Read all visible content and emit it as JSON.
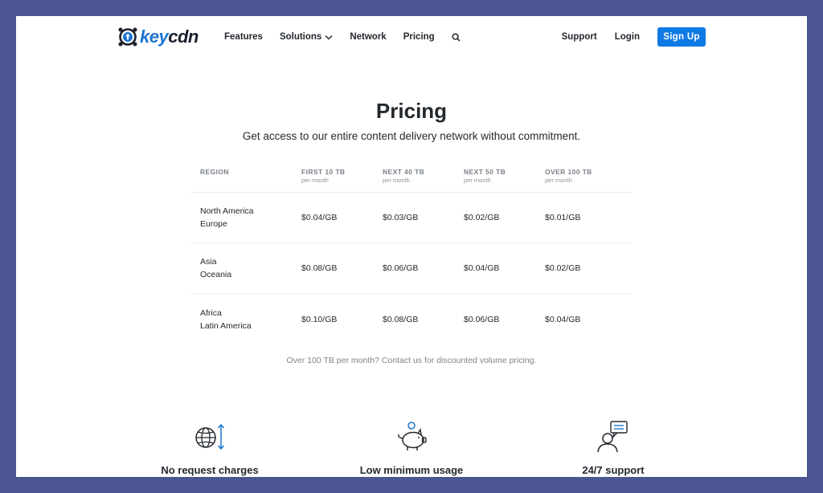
{
  "brand": {
    "name_key": "key",
    "name_cdn": "cdn",
    "logo_icon": "keycdn-logo-icon",
    "colors": {
      "brand_blue": "#1b75d0",
      "button_blue": "#0f7ae5",
      "frame_bg": "#4a5592"
    }
  },
  "nav": {
    "items": [
      {
        "label": "Features"
      },
      {
        "label": "Solutions",
        "has_dropdown": true,
        "icon": "chevron-down-icon"
      },
      {
        "label": "Network"
      },
      {
        "label": "Pricing"
      }
    ],
    "search_icon": "search-icon",
    "support": "Support",
    "login": "Login",
    "signup": "Sign Up"
  },
  "hero": {
    "title": "Pricing",
    "subtitle": "Get access to our entire content delivery network without commitment."
  },
  "pricing_table": {
    "headers": [
      {
        "title": "REGION",
        "sub": ""
      },
      {
        "title": "FIRST 10 TB",
        "sub": "per month"
      },
      {
        "title": "NEXT 40 TB",
        "sub": "per month"
      },
      {
        "title": "NEXT 50 TB",
        "sub": "per month"
      },
      {
        "title": "OVER 100 TB",
        "sub": "per month"
      }
    ],
    "rows": [
      {
        "regions": [
          "North America",
          "Europe"
        ],
        "prices": [
          "$0.04/GB",
          "$0.03/GB",
          "$0.02/GB",
          "$0.01/GB"
        ]
      },
      {
        "regions": [
          "Asia",
          "Oceania"
        ],
        "prices": [
          "$0.08/GB",
          "$0.06/GB",
          "$0.04/GB",
          "$0.02/GB"
        ]
      },
      {
        "regions": [
          "Africa",
          "Latin America"
        ],
        "prices": [
          "$0.10/GB",
          "$0.08/GB",
          "$0.06/GB",
          "$0.04/GB"
        ]
      }
    ],
    "note": "Over 100 TB per month? Contact us for discounted volume pricing."
  },
  "features": [
    {
      "label": "No request charges",
      "icon": "globe-transfer-icon"
    },
    {
      "label": "Low minimum usage",
      "icon": "piggy-bank-icon"
    },
    {
      "label": "24/7 support",
      "icon": "support-chat-icon"
    }
  ]
}
